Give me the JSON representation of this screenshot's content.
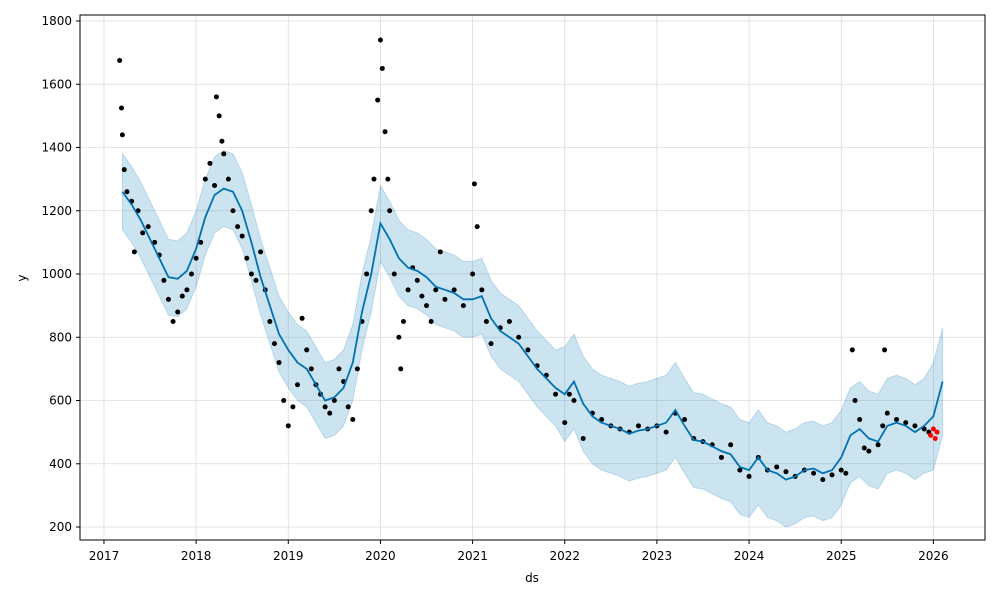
{
  "chart_data": {
    "type": "forecast",
    "x_label": "ds",
    "y_label": "y",
    "grid": true,
    "xlim": [
      2016.74,
      2026.56
    ],
    "ylim": [
      159,
      1819
    ],
    "xticks": [
      2017,
      2018,
      2019,
      2020,
      2021,
      2022,
      2023,
      2024,
      2025,
      2026
    ],
    "yticks": [
      200,
      400,
      600,
      800,
      1000,
      1200,
      1400,
      1600,
      1800
    ],
    "forecast": {
      "color": "#0072b2",
      "band_color": "#0072b2",
      "x": [
        2017.2,
        2017.3,
        2017.4,
        2017.5,
        2017.6,
        2017.7,
        2017.8,
        2017.9,
        2018.0,
        2018.1,
        2018.2,
        2018.3,
        2018.4,
        2018.5,
        2018.6,
        2018.7,
        2018.8,
        2018.9,
        2019.0,
        2019.1,
        2019.2,
        2019.3,
        2019.4,
        2019.5,
        2019.6,
        2019.7,
        2019.8,
        2019.9,
        2020.0,
        2020.1,
        2020.2,
        2020.3,
        2020.4,
        2020.5,
        2020.6,
        2020.7,
        2020.8,
        2020.9,
        2021.0,
        2021.1,
        2021.2,
        2021.3,
        2021.4,
        2021.5,
        2021.6,
        2021.7,
        2021.8,
        2021.9,
        2022.0,
        2022.1,
        2022.2,
        2022.3,
        2022.4,
        2022.5,
        2022.6,
        2022.7,
        2022.8,
        2022.9,
        2023.0,
        2023.1,
        2023.2,
        2023.3,
        2023.4,
        2023.5,
        2023.6,
        2023.7,
        2023.8,
        2023.9,
        2024.0,
        2024.1,
        2024.2,
        2024.3,
        2024.4,
        2024.5,
        2024.6,
        2024.7,
        2024.8,
        2024.9,
        2025.0,
        2025.1,
        2025.2,
        2025.3,
        2025.4,
        2025.5,
        2025.6,
        2025.7,
        2025.8,
        2025.9,
        2026.0,
        2026.1
      ],
      "values": [
        1260,
        1220,
        1170,
        1110,
        1050,
        990,
        985,
        1010,
        1080,
        1180,
        1250,
        1270,
        1260,
        1200,
        1100,
        990,
        900,
        810,
        760,
        720,
        700,
        650,
        600,
        610,
        640,
        720,
        880,
        1000,
        1160,
        1110,
        1050,
        1020,
        1010,
        990,
        960,
        950,
        940,
        920,
        920,
        930,
        860,
        820,
        800,
        780,
        740,
        700,
        670,
        640,
        620,
        660,
        590,
        550,
        530,
        520,
        510,
        495,
        505,
        510,
        520,
        530,
        570,
        520,
        475,
        470,
        455,
        440,
        430,
        390,
        380,
        420,
        380,
        370,
        350,
        360,
        380,
        385,
        370,
        380,
        420,
        490,
        510,
        480,
        470,
        520,
        530,
        520,
        500,
        520,
        550,
        660
      ],
      "upper": [
        1380,
        1340,
        1290,
        1230,
        1170,
        1110,
        1105,
        1130,
        1200,
        1300,
        1370,
        1390,
        1380,
        1320,
        1220,
        1110,
        1020,
        930,
        880,
        840,
        820,
        770,
        720,
        730,
        760,
        840,
        1000,
        1120,
        1280,
        1230,
        1170,
        1140,
        1130,
        1110,
        1080,
        1070,
        1060,
        1040,
        1040,
        1050,
        980,
        940,
        920,
        900,
        860,
        820,
        790,
        760,
        770,
        810,
        740,
        700,
        680,
        670,
        660,
        645,
        655,
        660,
        670,
        680,
        720,
        670,
        625,
        620,
        605,
        590,
        580,
        540,
        530,
        570,
        530,
        520,
        500,
        510,
        530,
        535,
        520,
        530,
        570,
        640,
        660,
        630,
        620,
        670,
        680,
        670,
        650,
        670,
        720,
        830
      ],
      "lower": [
        1140,
        1100,
        1050,
        990,
        930,
        870,
        865,
        890,
        960,
        1060,
        1130,
        1150,
        1140,
        1080,
        980,
        870,
        780,
        690,
        640,
        600,
        580,
        530,
        480,
        490,
        520,
        600,
        760,
        880,
        1040,
        990,
        930,
        900,
        890,
        870,
        840,
        830,
        820,
        800,
        800,
        810,
        740,
        700,
        680,
        660,
        620,
        580,
        550,
        520,
        470,
        510,
        440,
        400,
        380,
        370,
        360,
        345,
        355,
        360,
        370,
        380,
        420,
        370,
        325,
        320,
        305,
        290,
        280,
        240,
        230,
        270,
        230,
        220,
        200,
        210,
        230,
        235,
        220,
        230,
        270,
        340,
        360,
        330,
        320,
        370,
        380,
        370,
        350,
        370,
        380,
        490
      ]
    },
    "actual": {
      "color": "#000000",
      "x": [
        2017.17,
        2017.19,
        2017.2,
        2017.22,
        2017.25,
        2017.3,
        2017.33,
        2017.37,
        2017.42,
        2017.48,
        2017.55,
        2017.6,
        2017.65,
        2017.7,
        2017.75,
        2017.8,
        2017.85,
        2017.9,
        2017.95,
        2018.0,
        2018.05,
        2018.1,
        2018.15,
        2018.2,
        2018.22,
        2018.25,
        2018.28,
        2018.3,
        2018.35,
        2018.4,
        2018.45,
        2018.5,
        2018.55,
        2018.6,
        2018.65,
        2018.7,
        2018.75,
        2018.8,
        2018.85,
        2018.9,
        2018.95,
        2019.0,
        2019.05,
        2019.1,
        2019.15,
        2019.2,
        2019.25,
        2019.3,
        2019.35,
        2019.4,
        2019.45,
        2019.5,
        2019.55,
        2019.6,
        2019.65,
        2019.7,
        2019.75,
        2019.8,
        2019.85,
        2019.9,
        2019.93,
        2019.97,
        2020.0,
        2020.02,
        2020.05,
        2020.08,
        2020.1,
        2020.15,
        2020.2,
        2020.22,
        2020.25,
        2020.3,
        2020.35,
        2020.4,
        2020.45,
        2020.5,
        2020.55,
        2020.6,
        2020.65,
        2020.7,
        2020.8,
        2020.9,
        2021.0,
        2021.02,
        2021.05,
        2021.1,
        2021.15,
        2021.2,
        2021.3,
        2021.4,
        2021.5,
        2021.6,
        2021.7,
        2021.8,
        2021.9,
        2022.0,
        2022.05,
        2022.1,
        2022.2,
        2022.3,
        2022.4,
        2022.5,
        2022.6,
        2022.7,
        2022.8,
        2022.9,
        2023.0,
        2023.1,
        2023.2,
        2023.3,
        2023.4,
        2023.5,
        2023.6,
        2023.7,
        2023.8,
        2023.9,
        2024.0,
        2024.1,
        2024.2,
        2024.3,
        2024.4,
        2024.5,
        2024.6,
        2024.7,
        2024.8,
        2024.9,
        2025.0,
        2025.05,
        2025.12,
        2025.15,
        2025.2,
        2025.25,
        2025.3,
        2025.4,
        2025.45,
        2025.47,
        2025.5,
        2025.6,
        2025.7,
        2025.8,
        2025.9,
        2025.95
      ],
      "values": [
        1675,
        1525,
        1440,
        1330,
        1260,
        1230,
        1070,
        1200,
        1130,
        1150,
        1100,
        1060,
        980,
        920,
        850,
        880,
        930,
        950,
        1000,
        1050,
        1100,
        1300,
        1350,
        1280,
        1560,
        1500,
        1420,
        1380,
        1300,
        1200,
        1150,
        1120,
        1050,
        1000,
        980,
        1070,
        950,
        850,
        780,
        720,
        600,
        520,
        580,
        650,
        860,
        760,
        700,
        650,
        620,
        580,
        560,
        600,
        700,
        660,
        580,
        540,
        700,
        850,
        1000,
        1200,
        1300,
        1550,
        1740,
        1650,
        1450,
        1300,
        1200,
        1000,
        800,
        700,
        850,
        950,
        1020,
        980,
        930,
        900,
        850,
        950,
        1070,
        920,
        950,
        900,
        1000,
        1285,
        1150,
        950,
        850,
        780,
        830,
        850,
        800,
        760,
        710,
        680,
        620,
        530,
        620,
        600,
        480,
        560,
        540,
        520,
        510,
        500,
        520,
        510,
        520,
        500,
        560,
        540,
        480,
        470,
        460,
        420,
        460,
        380,
        360,
        420,
        380,
        390,
        375,
        360,
        380,
        370,
        350,
        365,
        380,
        370,
        760,
        600,
        540,
        450,
        440,
        460,
        520,
        760,
        560,
        540,
        530,
        520,
        510,
        500
      ]
    },
    "recent": {
      "color": "#ff0000",
      "x": [
        2025.97,
        2026.0,
        2026.02,
        2026.04
      ],
      "values": [
        490,
        510,
        480,
        500
      ]
    }
  }
}
